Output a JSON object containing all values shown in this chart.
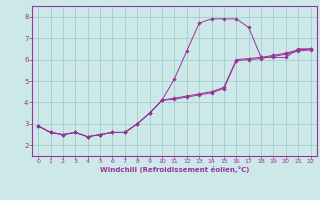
{
  "xlabel": "Windchill (Refroidissement éolien,°C)",
  "background_color": "#cce8e8",
  "grid_color": "#aad0d0",
  "line_color": "#993399",
  "xlim": [
    -0.5,
    22.5
  ],
  "ylim": [
    1.5,
    8.5
  ],
  "xticks": [
    0,
    1,
    2,
    3,
    4,
    5,
    6,
    7,
    8,
    9,
    10,
    11,
    12,
    13,
    14,
    15,
    16,
    17,
    18,
    19,
    20,
    21,
    22
  ],
  "yticks": [
    2,
    3,
    4,
    5,
    6,
    7,
    8
  ],
  "curve1_x": [
    0,
    1,
    2,
    3,
    4,
    5,
    6,
    7,
    8,
    9,
    10,
    11,
    12,
    13,
    14,
    15,
    16,
    17,
    18,
    19,
    20,
    21,
    22
  ],
  "curve1_y": [
    2.9,
    2.6,
    2.5,
    2.6,
    2.4,
    2.5,
    2.6,
    2.6,
    3.0,
    3.5,
    4.1,
    5.1,
    6.4,
    7.7,
    7.9,
    7.9,
    7.9,
    7.5,
    6.1,
    6.1,
    6.1,
    6.5,
    6.5
  ],
  "curve2_x": [
    0,
    1,
    2,
    3,
    4,
    5,
    6,
    7,
    8,
    9,
    10,
    11,
    12,
    13,
    14,
    15,
    16,
    17,
    18,
    19,
    20,
    21,
    22
  ],
  "curve2_y": [
    2.9,
    2.6,
    2.5,
    2.6,
    2.4,
    2.5,
    2.6,
    2.6,
    3.0,
    3.5,
    4.1,
    4.2,
    4.3,
    4.4,
    4.5,
    4.7,
    6.0,
    6.05,
    6.1,
    6.2,
    6.3,
    6.45,
    6.5
  ],
  "curve3_x": [
    0,
    1,
    2,
    3,
    4,
    5,
    6,
    7,
    8,
    9,
    10,
    11,
    12,
    13,
    14,
    15,
    16,
    17,
    18,
    19,
    20,
    21,
    22
  ],
  "curve3_y": [
    2.9,
    2.6,
    2.5,
    2.6,
    2.4,
    2.5,
    2.6,
    2.6,
    3.0,
    3.5,
    4.1,
    4.15,
    4.25,
    4.35,
    4.45,
    4.65,
    5.95,
    6.0,
    6.05,
    6.15,
    6.25,
    6.4,
    6.45
  ]
}
